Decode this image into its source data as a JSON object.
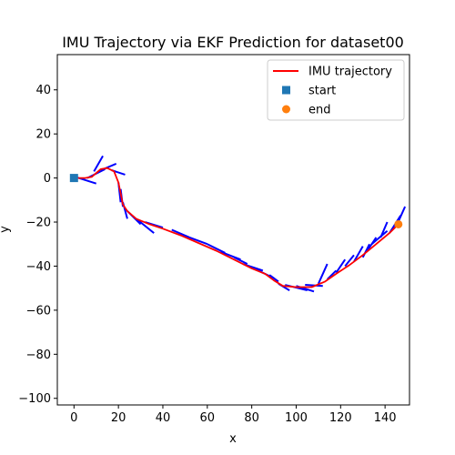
{
  "chart_data": {
    "type": "line",
    "title": "IMU Trajectory via EKF Prediction for dataset00",
    "xlabel": "x",
    "ylabel": "y",
    "xlim": [
      -7.5,
      151
    ],
    "ylim": [
      -103,
      56
    ],
    "xticks": [
      0,
      20,
      40,
      60,
      80,
      100,
      120,
      140
    ],
    "yticks": [
      40,
      20,
      0,
      -20,
      -40,
      -60,
      -80,
      -100
    ],
    "xtick_labels": [
      "0",
      "20",
      "40",
      "60",
      "80",
      "100",
      "120",
      "140"
    ],
    "ytick_labels": [
      "40",
      "20",
      "0",
      "−20",
      "−40",
      "−60",
      "−80",
      "−100"
    ],
    "legend_position": "top-right",
    "grid": false,
    "series": [
      {
        "name": "IMU trajectory",
        "kind": "line",
        "color": "#ff0000",
        "x": [
          0,
          5,
          8,
          12,
          15,
          18,
          20,
          21,
          22,
          24,
          28,
          34,
          40,
          48,
          56,
          64,
          72,
          80,
          86,
          90,
          94,
          100,
          107,
          113,
          118,
          124,
          130,
          136,
          142,
          146
        ],
        "y": [
          0,
          0,
          0.5,
          4,
          4.5,
          3,
          -2,
          -7,
          -12,
          -15,
          -18.5,
          -21,
          -23,
          -26,
          -29.5,
          -33,
          -37,
          -41,
          -43.5,
          -46.5,
          -49,
          -49.5,
          -49.5,
          -47,
          -43.5,
          -39.5,
          -35,
          -30,
          -25,
          -21
        ]
      },
      {
        "name": "start",
        "kind": "marker",
        "marker": "square",
        "color": "#1f77b4",
        "x": [
          0
        ],
        "y": [
          0
        ]
      },
      {
        "name": "end",
        "kind": "marker",
        "marker": "circle",
        "color": "#ff7f0e",
        "x": [
          146
        ],
        "y": [
          -21
        ]
      },
      {
        "name": "",
        "kind": "heading-segments",
        "color": "#0000ff",
        "segments": [
          [
            [
              -1,
              1
            ],
            [
              10,
              -2.5
            ]
          ],
          [
            [
              6,
              0
            ],
            [
              14,
              4
            ]
          ],
          [
            [
              9,
              3
            ],
            [
              13,
              10
            ]
          ],
          [
            [
              12,
              3.5
            ],
            [
              19,
              6.5
            ]
          ],
          [
            [
              17,
              3.5
            ],
            [
              23,
              1.5
            ]
          ],
          [
            [
              20,
              -2
            ],
            [
              21,
              -11
            ]
          ],
          [
            [
              21,
              -5
            ],
            [
              22,
              -13
            ]
          ],
          [
            [
              22,
              -11
            ],
            [
              24,
              -18.5
            ]
          ],
          [
            [
              24,
              -15
            ],
            [
              30,
              -21
            ]
          ],
          [
            [
              28,
              -18.5
            ],
            [
              36,
              -25
            ]
          ],
          [
            [
              32,
              -20
            ],
            [
              40,
              -22.5
            ]
          ],
          [
            [
              44,
              -23.5
            ],
            [
              52,
              -27
            ]
          ],
          [
            [
              52,
              -27
            ],
            [
              60,
              -30
            ]
          ],
          [
            [
              60,
              -30
            ],
            [
              68,
              -34
            ]
          ],
          [
            [
              66,
              -33.5
            ],
            [
              75,
              -37
            ]
          ],
          [
            [
              72,
              -36
            ],
            [
              78,
              -39
            ]
          ],
          [
            [
              76,
              -39
            ],
            [
              85,
              -42
            ]
          ],
          [
            [
              82,
              -41.5
            ],
            [
              90,
              -45.5
            ]
          ],
          [
            [
              88,
              -44
            ],
            [
              92,
              -47
            ]
          ],
          [
            [
              92,
              -48
            ],
            [
              97,
              -51
            ]
          ],
          [
            [
              95,
              -48.5
            ],
            [
              105,
              -51
            ]
          ],
          [
            [
              100,
              -49
            ],
            [
              108,
              -51.5
            ]
          ],
          [
            [
              104,
              -48.5
            ],
            [
              112,
              -49
            ]
          ],
          [
            [
              110,
              -48
            ],
            [
              114,
              -39
            ]
          ],
          [
            [
              114,
              -46
            ],
            [
              118,
              -42
            ]
          ],
          [
            [
              118,
              -43
            ],
            [
              122,
              -37
            ]
          ],
          [
            [
              122,
              -40
            ],
            [
              126,
              -35
            ]
          ],
          [
            [
              126,
              -38
            ],
            [
              130,
              -31
            ]
          ],
          [
            [
              130,
              -36
            ],
            [
              133,
              -30
            ]
          ],
          [
            [
              132,
              -33
            ],
            [
              136,
              -27
            ]
          ],
          [
            [
              134,
              -30
            ],
            [
              141,
              -24
            ]
          ],
          [
            [
              138,
              -27
            ],
            [
              141,
              -20
            ]
          ],
          [
            [
              142,
              -25
            ],
            [
              147,
              -17
            ]
          ],
          [
            [
              145,
              -22
            ],
            [
              149,
              -13
            ]
          ]
        ]
      }
    ],
    "legend": [
      {
        "label": "IMU trajectory",
        "kind": "line",
        "color": "#ff0000"
      },
      {
        "label": "start",
        "kind": "square",
        "color": "#1f77b4"
      },
      {
        "label": "end",
        "kind": "circle",
        "color": "#ff7f0e"
      }
    ]
  }
}
